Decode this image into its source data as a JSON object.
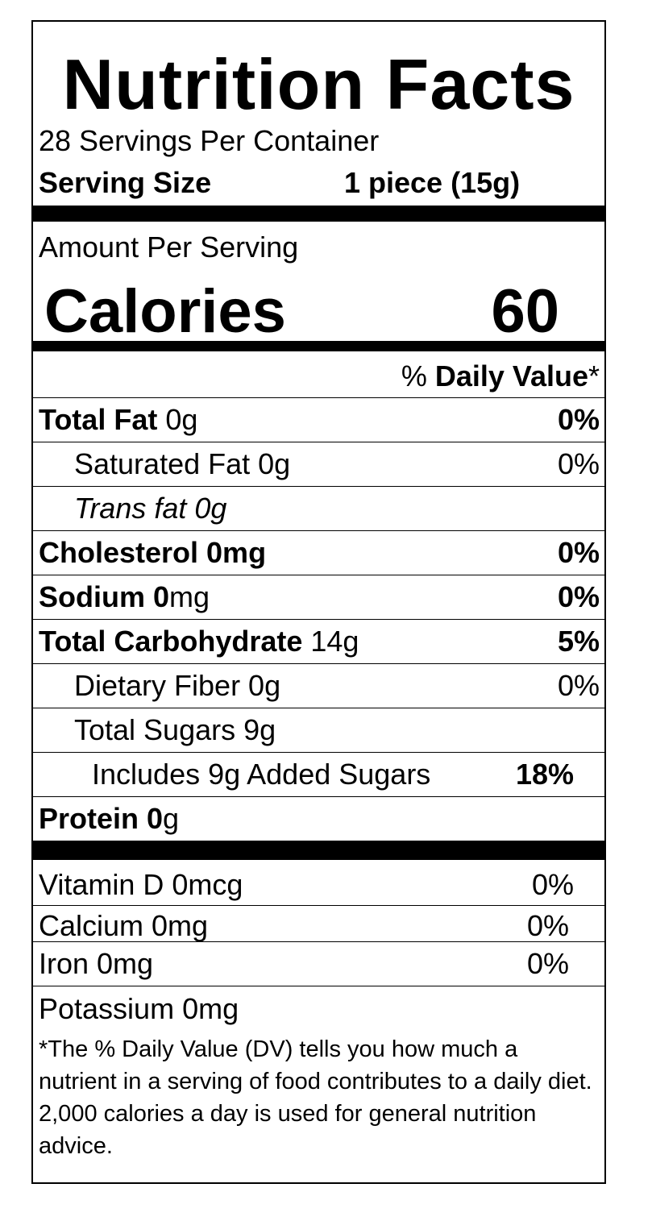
{
  "title": "Nutrition Facts",
  "servings_per_container": "28 Servings Per Container",
  "serving_size": {
    "label": "Serving Size",
    "value": "1 piece  (15g)"
  },
  "amount_per_serving": "Amount Per Serving",
  "calories": {
    "label": "Calories",
    "value": "60"
  },
  "daily_value_header": {
    "prefix": "% ",
    "bold": "Daily Value",
    "suffix": "*"
  },
  "nutrients": [
    {
      "bold": "Total Fat",
      "rest": " 0g",
      "pct": "0%"
    },
    {
      "bold": "",
      "rest": "Saturated Fat 0g",
      "pct": "0%"
    },
    {
      "bold": "",
      "rest": "Trans fat 0g",
      "pct": ""
    },
    {
      "bold": "Cholesterol 0mg",
      "rest": "",
      "pct": "0%"
    },
    {
      "bold": "Sodium 0",
      "rest": "mg",
      "pct": "0%"
    },
    {
      "bold": "Total Carbohydrate",
      "rest": " 14g",
      "pct": "5%"
    },
    {
      "bold": "",
      "rest": "Dietary Fiber 0g",
      "pct": "0%"
    },
    {
      "bold": "",
      "rest": "Total Sugars 9g",
      "pct": ""
    },
    {
      "bold": "",
      "rest": "Includes 9g Added Sugars",
      "pct": "18%"
    },
    {
      "bold": "Protein 0",
      "rest": "g",
      "pct": ""
    }
  ],
  "vitamins": [
    {
      "name": "Vitamin D 0mcg",
      "pct": "0%"
    },
    {
      "name": "Calcium 0mg",
      "pct": "0%"
    },
    {
      "name": "Iron  0mg",
      "pct": "0%"
    },
    {
      "name": "Potassium 0mg",
      "pct": ""
    }
  ],
  "footnote": "*The % Daily Value (DV) tells you how much a nutrient in a serving of food contributes to a daily diet. 2,000 calories a day is used for general nutrition advice."
}
